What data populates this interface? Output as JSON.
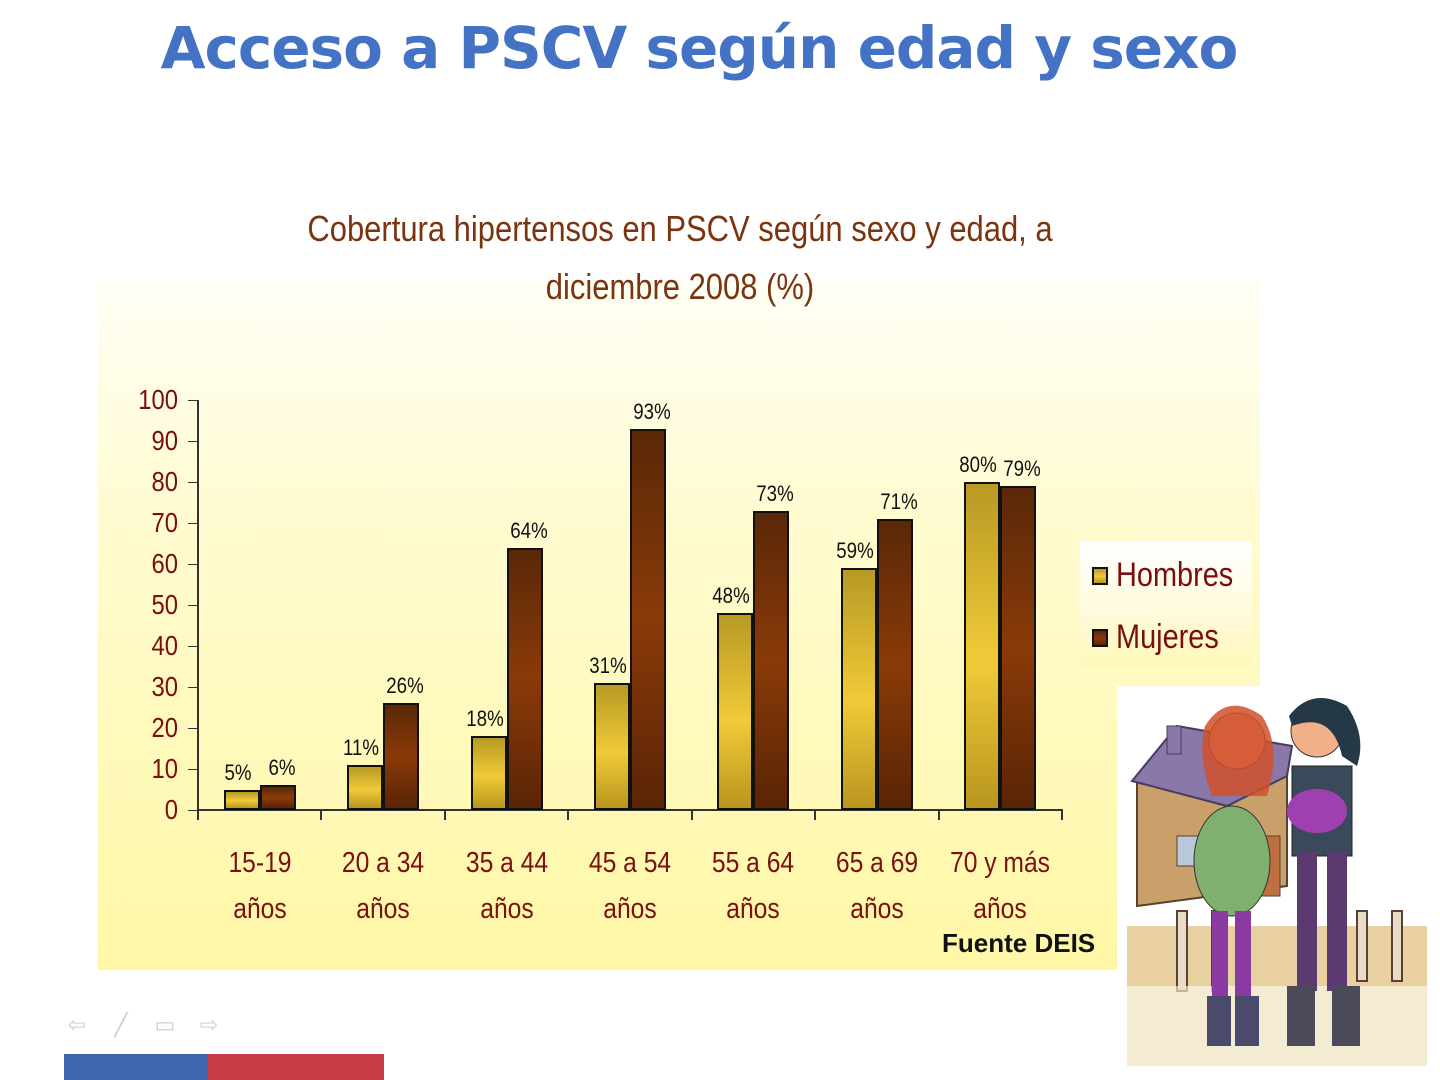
{
  "slide": {
    "title": "Acceso a PSCV según edad y sexo",
    "source": "Fuente DEIS",
    "footer_colors": {
      "blue": "#3c67ad",
      "red": "#c83c46"
    },
    "nav_icons": [
      "arrow-left-icon",
      "pen-icon",
      "slide-menu-icon",
      "arrow-right-icon"
    ],
    "illustration": "family-in-front-of-house-illustration"
  },
  "chart_data": {
    "type": "bar",
    "title": "Cobertura hipertensos en PSCV según sexo y edad, a diciembre 2008 (%)",
    "title_lines": [
      "Cobertura hipertensos en PSCV según sexo y edad, a",
      "diciembre 2008 (%)"
    ],
    "categories": [
      "15-19 años",
      "20 a 34 años",
      "35 a 44 años",
      "45 a 54 años",
      "55 a 64 años",
      "65 a 69 años",
      "70 y más años"
    ],
    "category_lines": [
      [
        "15-19",
        "años"
      ],
      [
        "20 a 34",
        "años"
      ],
      [
        "35 a 44",
        "años"
      ],
      [
        "45 a 54",
        "años"
      ],
      [
        "55 a 64",
        "años"
      ],
      [
        "65 a 69",
        "años"
      ],
      [
        "70 y más",
        "años"
      ]
    ],
    "series": [
      {
        "name": "Hombres",
        "color": "#e8c030",
        "values": [
          5,
          11,
          18,
          31,
          48,
          59,
          80
        ],
        "labels": [
          "5%",
          "11%",
          "18%",
          "31%",
          "48%",
          "59%",
          "80%"
        ]
      },
      {
        "name": "Mujeres",
        "color": "#7a3208",
        "values": [
          6,
          26,
          64,
          93,
          73,
          71,
          79
        ],
        "labels": [
          "6%",
          "26%",
          "64%",
          "93%",
          "73%",
          "71%",
          "79%"
        ]
      }
    ],
    "xlabel": "",
    "ylabel": "",
    "ylim": [
      0,
      100
    ],
    "yticks": [
      0,
      10,
      20,
      30,
      40,
      50,
      60,
      70,
      80,
      90,
      100
    ],
    "grid": false,
    "legend_position": "right"
  }
}
